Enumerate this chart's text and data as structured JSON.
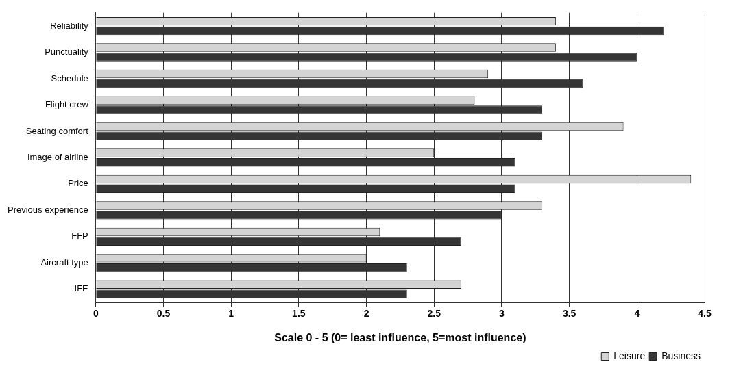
{
  "chart_data": {
    "type": "bar",
    "orientation": "horizontal",
    "xlabel": "Scale 0 - 5 (0= least influence, 5=most influence)",
    "categories": [
      "Reliability",
      "Punctuality",
      "Schedule",
      "Flight crew",
      "Seating comfort",
      "Image of airline",
      "Price",
      "Previous experience",
      "FFP",
      "Aircraft type",
      "IFE"
    ],
    "series": [
      {
        "name": "Leisure",
        "color": "#d4d4d4",
        "values": [
          3.4,
          3.4,
          2.9,
          2.8,
          3.9,
          2.5,
          4.4,
          3.3,
          2.1,
          2.0,
          2.7
        ]
      },
      {
        "name": "Business",
        "color": "#353535",
        "values": [
          4.2,
          4.0,
          3.6,
          3.3,
          3.3,
          3.1,
          3.1,
          3.0,
          2.7,
          2.3,
          2.3
        ]
      }
    ],
    "xlim": [
      0,
      4.5
    ],
    "xticks": [
      0,
      0.5,
      1,
      1.5,
      2,
      2.5,
      3,
      3.5,
      4,
      4.5
    ],
    "grid": "x",
    "legend": "bottom right"
  }
}
